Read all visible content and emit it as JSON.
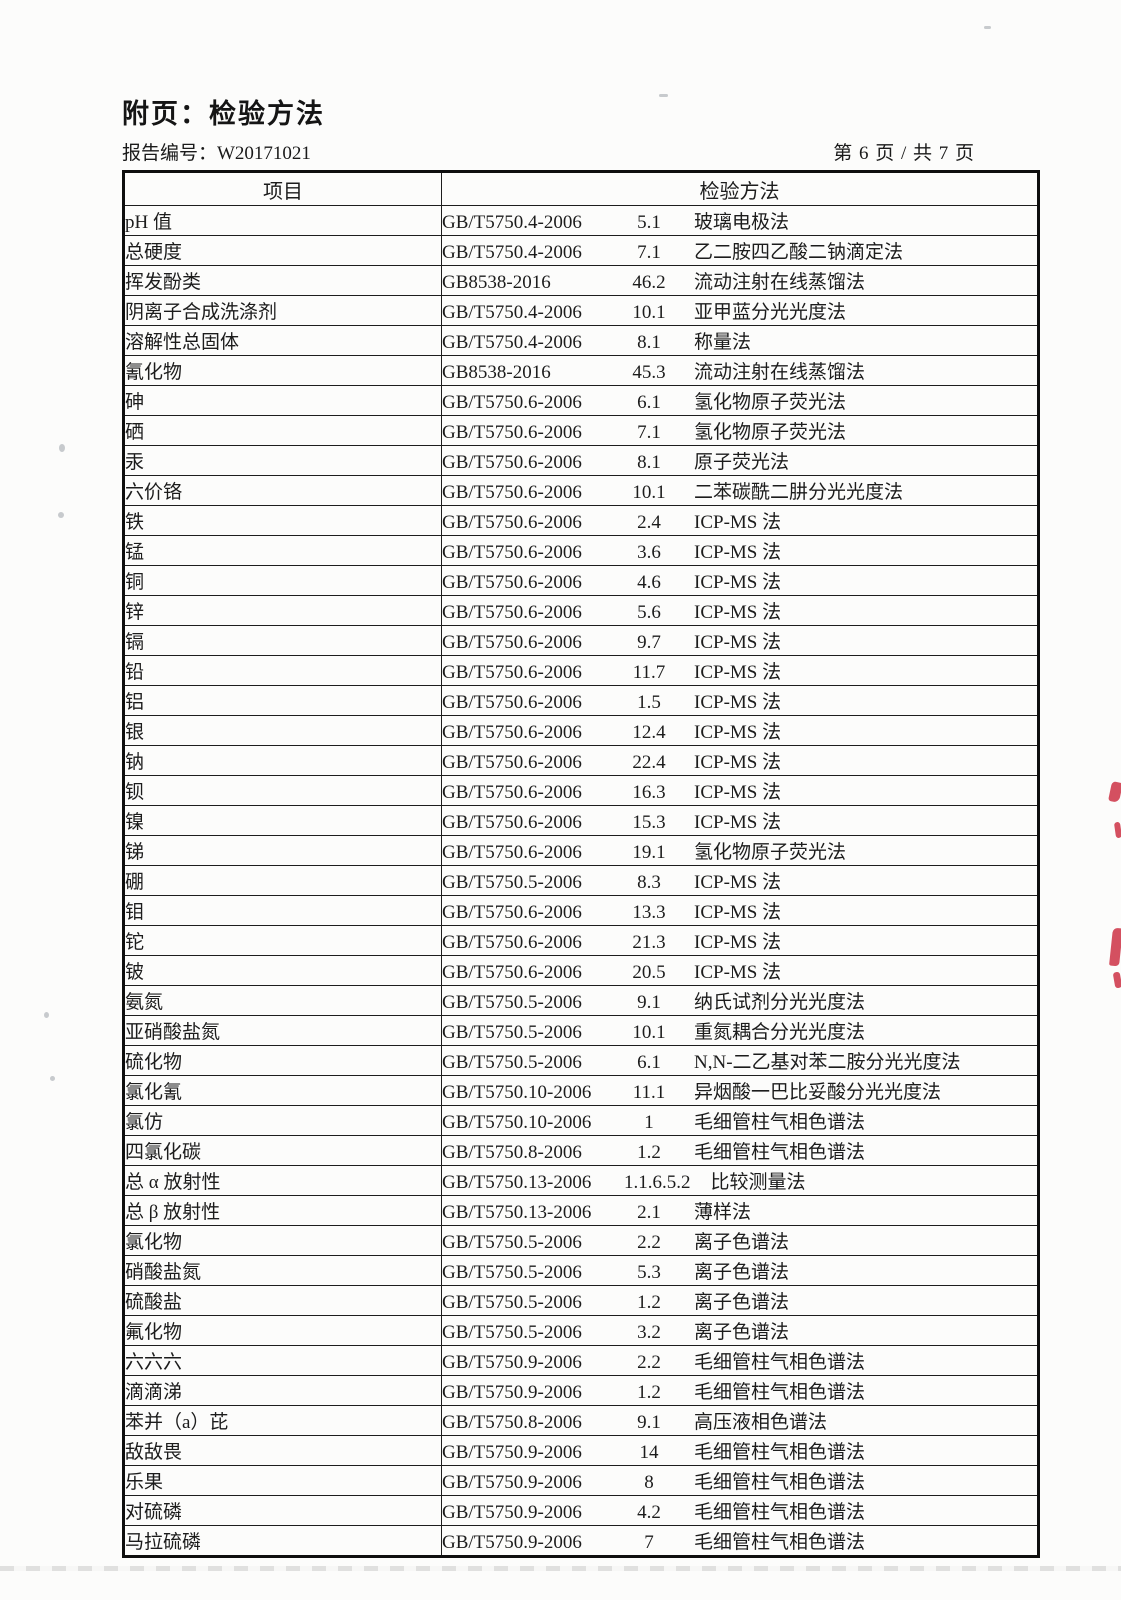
{
  "page": {
    "title": "附页：检验方法",
    "report_no": "报告编号：W20171021",
    "page_info": "第 6 页 / 共 7 页"
  },
  "table": {
    "headers": {
      "item": "项目",
      "method": "检验方法"
    },
    "rows": [
      {
        "item": "pH 值",
        "standard": "GB/T5750.4-2006",
        "clause": "5.1",
        "method": "玻璃电极法"
      },
      {
        "item": "总硬度",
        "standard": "GB/T5750.4-2006",
        "clause": "7.1",
        "method": "乙二胺四乙酸二钠滴定法"
      },
      {
        "item": "挥发酚类",
        "standard": "GB8538-2016",
        "clause": "46.2",
        "method": "流动注射在线蒸馏法"
      },
      {
        "item": "阴离子合成洗涤剂",
        "standard": "GB/T5750.4-2006",
        "clause": "10.1",
        "method": "亚甲蓝分光光度法"
      },
      {
        "item": "溶解性总固体",
        "standard": "GB/T5750.4-2006",
        "clause": "8.1",
        "method": "称量法"
      },
      {
        "item": "氰化物",
        "standard": "GB8538-2016",
        "clause": "45.3",
        "method": "流动注射在线蒸馏法"
      },
      {
        "item": "砷",
        "standard": "GB/T5750.6-2006",
        "clause": "6.1",
        "method": "氢化物原子荧光法"
      },
      {
        "item": "硒",
        "standard": "GB/T5750.6-2006",
        "clause": "7.1",
        "method": "氢化物原子荧光法"
      },
      {
        "item": "汞",
        "standard": "GB/T5750.6-2006",
        "clause": "8.1",
        "method": "原子荧光法"
      },
      {
        "item": "六价铬",
        "standard": "GB/T5750.6-2006",
        "clause": "10.1",
        "method": "二苯碳酰二肼分光光度法"
      },
      {
        "item": "铁",
        "standard": "GB/T5750.6-2006",
        "clause": "2.4",
        "method": "ICP-MS 法"
      },
      {
        "item": "锰",
        "standard": "GB/T5750.6-2006",
        "clause": "3.6",
        "method": "ICP-MS 法"
      },
      {
        "item": "铜",
        "standard": "GB/T5750.6-2006",
        "clause": "4.6",
        "method": "ICP-MS 法"
      },
      {
        "item": "锌",
        "standard": "GB/T5750.6-2006",
        "clause": "5.6",
        "method": "ICP-MS 法"
      },
      {
        "item": "镉",
        "standard": "GB/T5750.6-2006",
        "clause": "9.7",
        "method": "ICP-MS 法"
      },
      {
        "item": "铅",
        "standard": "GB/T5750.6-2006",
        "clause": "11.7",
        "method": "ICP-MS 法"
      },
      {
        "item": "铝",
        "standard": "GB/T5750.6-2006",
        "clause": "1.5",
        "method": "ICP-MS 法"
      },
      {
        "item": "银",
        "standard": "GB/T5750.6-2006",
        "clause": "12.4",
        "method": "ICP-MS 法"
      },
      {
        "item": "钠",
        "standard": "GB/T5750.6-2006",
        "clause": "22.4",
        "method": "ICP-MS 法"
      },
      {
        "item": "钡",
        "standard": "GB/T5750.6-2006",
        "clause": "16.3",
        "method": "ICP-MS 法"
      },
      {
        "item": "镍",
        "standard": "GB/T5750.6-2006",
        "clause": "15.3",
        "method": "ICP-MS 法"
      },
      {
        "item": "锑",
        "standard": "GB/T5750.6-2006",
        "clause": "19.1",
        "method": "氢化物原子荧光法"
      },
      {
        "item": "硼",
        "standard": "GB/T5750.5-2006",
        "clause": "8.3",
        "method": "ICP-MS 法"
      },
      {
        "item": "钼",
        "standard": "GB/T5750.6-2006",
        "clause": "13.3",
        "method": "ICP-MS 法"
      },
      {
        "item": "铊",
        "standard": "GB/T5750.6-2006",
        "clause": "21.3",
        "method": "ICP-MS 法"
      },
      {
        "item": "铍",
        "standard": "GB/T5750.6-2006",
        "clause": "20.5",
        "method": "ICP-MS 法"
      },
      {
        "item": "氨氮",
        "standard": "GB/T5750.5-2006",
        "clause": "9.1",
        "method": "纳氏试剂分光光度法"
      },
      {
        "item": "亚硝酸盐氮",
        "standard": "GB/T5750.5-2006",
        "clause": "10.1",
        "method": "重氮耦合分光光度法"
      },
      {
        "item": "硫化物",
        "standard": "GB/T5750.5-2006",
        "clause": "6.1",
        "method": "N,N-二乙基对苯二胺分光光度法"
      },
      {
        "item": "氯化氰",
        "standard": "GB/T5750.10-2006",
        "clause": "11.1",
        "method": "异烟酸一巴比妥酸分光光度法"
      },
      {
        "item": "氯仿",
        "standard": "GB/T5750.10-2006",
        "clause": "1",
        "method": "毛细管柱气相色谱法"
      },
      {
        "item": "四氯化碳",
        "standard": "GB/T5750.8-2006",
        "clause": "1.2",
        "method": "毛细管柱气相色谱法"
      },
      {
        "item": "总 α 放射性",
        "standard": "GB/T5750.13-2006",
        "clause": "1.1.6.5.2",
        "method": "比较测量法"
      },
      {
        "item": "总 β 放射性",
        "standard": "GB/T5750.13-2006",
        "clause": "2.1",
        "method": "薄样法"
      },
      {
        "item": "氯化物",
        "standard": "GB/T5750.5-2006",
        "clause": "2.2",
        "method": "离子色谱法"
      },
      {
        "item": "硝酸盐氮",
        "standard": "GB/T5750.5-2006",
        "clause": "5.3",
        "method": "离子色谱法"
      },
      {
        "item": "硫酸盐",
        "standard": "GB/T5750.5-2006",
        "clause": "1.2",
        "method": "离子色谱法"
      },
      {
        "item": "氟化物",
        "standard": "GB/T5750.5-2006",
        "clause": "3.2",
        "method": "离子色谱法"
      },
      {
        "item": "六六六",
        "standard": "GB/T5750.9-2006",
        "clause": "2.2",
        "method": "毛细管柱气相色谱法"
      },
      {
        "item": "滴滴涕",
        "standard": "GB/T5750.9-2006",
        "clause": "1.2",
        "method": "毛细管柱气相色谱法"
      },
      {
        "item": "苯并（a）芘",
        "standard": "GB/T5750.8-2006",
        "clause": "9.1",
        "method": "高压液相色谱法"
      },
      {
        "item": "敌敌畏",
        "standard": "GB/T5750.9-2006",
        "clause": "14",
        "method": "毛细管柱气相色谱法"
      },
      {
        "item": "乐果",
        "standard": "GB/T5750.9-2006",
        "clause": "8",
        "method": "毛细管柱气相色谱法"
      },
      {
        "item": "对硫磷",
        "standard": "GB/T5750.9-2006",
        "clause": "4.2",
        "method": "毛细管柱气相色谱法"
      },
      {
        "item": "马拉硫磷",
        "standard": "GB/T5750.9-2006",
        "clause": "7",
        "method": "毛细管柱气相色谱法"
      }
    ]
  },
  "artifact_colors": {
    "red_ink": "#c9243a"
  }
}
